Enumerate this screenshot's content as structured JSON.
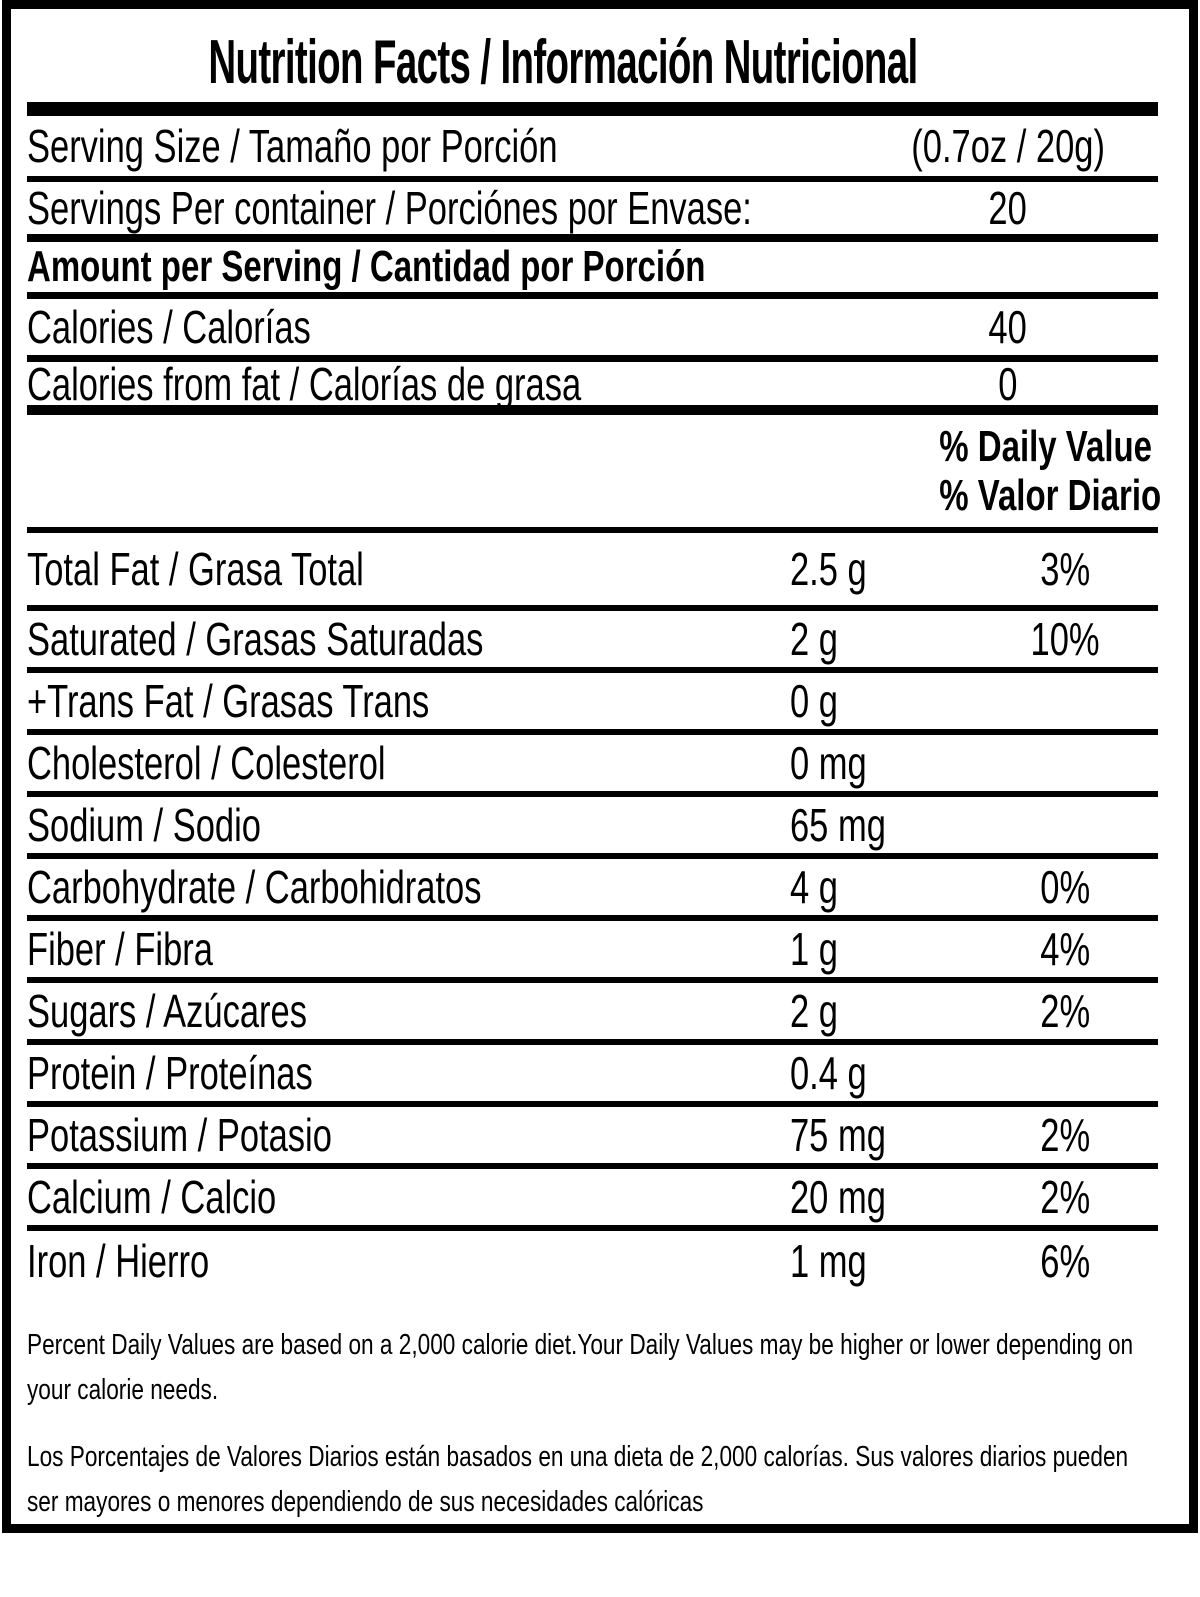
{
  "title": "Nutrition Facts / Información Nutricional",
  "serving": {
    "size_label": "Serving Size / Tamaño por Porción",
    "size_value": "(0.7oz / 20g)",
    "per_container_label": "Servings Per container / Porciónes por Envase:",
    "per_container_value": "20"
  },
  "amount_header": "Amount per Serving / Cantidad por Porción",
  "calories": {
    "label": "Calories / Calorías",
    "value": "40",
    "from_fat_label": "Calories from fat / Calorías de grasa",
    "from_fat_value": "0"
  },
  "daily_value_header": {
    "line1": "% Daily Value",
    "line2": "% Valor Diario"
  },
  "nutrients": [
    {
      "label": "Total Fat / Grasa Total",
      "amount": "2.5 g",
      "dv": "3%"
    },
    {
      "label": "Saturated / Grasas Saturadas",
      "amount": "2 g",
      "dv": "10%"
    },
    {
      "label": "+Trans Fat / Grasas Trans",
      "amount": "0 g",
      "dv": ""
    },
    {
      "label": "Cholesterol / Colesterol",
      "amount": "0 mg",
      "dv": ""
    },
    {
      "label": "Sodium / Sodio",
      "amount": "65 mg",
      "dv": ""
    },
    {
      "label": "Carbohydrate / Carbohidratos",
      "amount": "4 g",
      "dv": "0%"
    },
    {
      "label": "Fiber / Fibra",
      "amount": "1 g",
      "dv": "4%"
    },
    {
      "label": "Sugars / Azúcares",
      "amount": "2 g",
      "dv": "2%"
    },
    {
      "label": "Protein / Proteínas",
      "amount": "0.4 g",
      "dv": ""
    },
    {
      "label": "Potassium / Potasio",
      "amount": "75 mg",
      "dv": "2%"
    },
    {
      "label": "Calcium / Calcio",
      "amount": "20 mg",
      "dv": "2%"
    },
    {
      "label": "Iron / Hierro",
      "amount": "1 mg",
      "dv": "6%"
    }
  ],
  "footnotes": {
    "english": "Percent Daily Values are based on a 2,000 calorie diet.Your Daily Values may be higher or lower depending on your calorie needs.",
    "spanish": "Los Porcentajes de Valores Diarios están basados en una dieta de 2,000 calorías. Sus valores diarios pueden ser mayores o menores dependiendo de sus necesidades calóricas"
  },
  "colors": {
    "ink": "#000000",
    "background": "#ffffff"
  }
}
